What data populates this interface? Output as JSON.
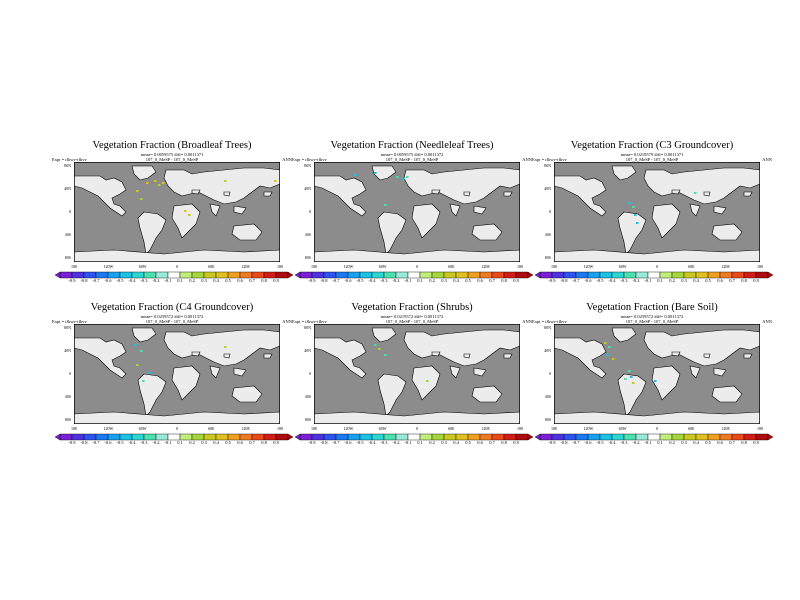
{
  "panels": [
    {
      "title": "Vegetation Fraction (Broadleaf Trees)",
      "mean": "mean= 0.0059575 diff= 0.0011371",
      "expt": "Expt = tfkwv-tfkvv",
      "run": "107_0_MeSP - 107_0_MeSP",
      "period": "ANN"
    },
    {
      "title": "Vegetation Fraction (Needleleaf Trees)",
      "mean": "mean= 0.0059575 diff= 0.0011372",
      "expt": "Expt = tfkwv-tfkvv",
      "run": "107_0_MeSP - 107_0_MeSP",
      "period": "ANN"
    },
    {
      "title": "Vegetation Fraction (C3 Groundcover)",
      "mean": "mean= 0.0219579 diff= 0.0011371",
      "expt": "Expt = tfkwv-tfkvv",
      "run": "107_0_MeSP - 107_0_MeSP",
      "period": "ANN"
    },
    {
      "title": "Vegetation Fraction (C4 Groundcover)",
      "mean": "mean= 0.0259572 diff= 0.0011372",
      "expt": "Expt = tfkwv-tfkvv",
      "run": "107_0_MeSP - 107_0_MeSP",
      "period": "ANN"
    },
    {
      "title": "Vegetation Fraction (Shrubs)",
      "mean": "mean= 0.0219572 diff= 0.0011372",
      "expt": "Expt = tfkwv-tfkvv",
      "run": "107_0_MeSP - 107_0_MeSP",
      "period": "ANN"
    },
    {
      "title": "Vegetation Fraction (Bare Soil)",
      "mean": "mean= 0.0259572 diff= 0.0011372",
      "expt": "Expt = tfkwv-tfkvv",
      "run": "107_0_MeSP - 107_0_MeSP",
      "period": "ANN"
    }
  ],
  "map": {
    "lat_labels": [
      "80N",
      "40N",
      "0",
      "40S",
      "80S"
    ],
    "lon_labels": [
      "180",
      "120W",
      "60W",
      "0",
      "60E",
      "120E",
      "180"
    ],
    "ocean_color": "#8c8c8c",
    "land_color": "#ececec",
    "coast_color": "#000000"
  },
  "colorbar": {
    "ticks": [
      "-0.9",
      "-0.8",
      "-0.7",
      "-0.6",
      "-0.5",
      "-0.4",
      "-0.3",
      "-0.2",
      "-0.1",
      "0.1",
      "0.2",
      "0.3",
      "0.4",
      "0.5",
      "0.6",
      "0.7",
      "0.8",
      "0.9"
    ],
    "colors": [
      "#7a1fd6",
      "#4d32e0",
      "#2f52f0",
      "#1a78f0",
      "#1aa0f0",
      "#1ac2e8",
      "#2ad6d0",
      "#4ae0b0",
      "#9ae8d8",
      "#ffffff",
      "#c4ec7a",
      "#a6d63a",
      "#c8c820",
      "#e0c020",
      "#f0a020",
      "#f07820",
      "#e84a1a",
      "#d41c14",
      "#b00c0c"
    ]
  },
  "panel_colors": [
    [
      "#e0c020",
      "#c8c820",
      "#a6d63a"
    ],
    [
      "#1ac2e8",
      "#4ae0b0"
    ],
    [
      "#1ac2e8",
      "#4ae0b0"
    ],
    [
      "#1ac2e8",
      "#4ae0b0",
      "#a6d63a"
    ],
    [
      "#4ae0b0",
      "#a6d63a"
    ],
    [
      "#c8c820",
      "#4ae0b0",
      "#1ac2e8"
    ]
  ]
}
